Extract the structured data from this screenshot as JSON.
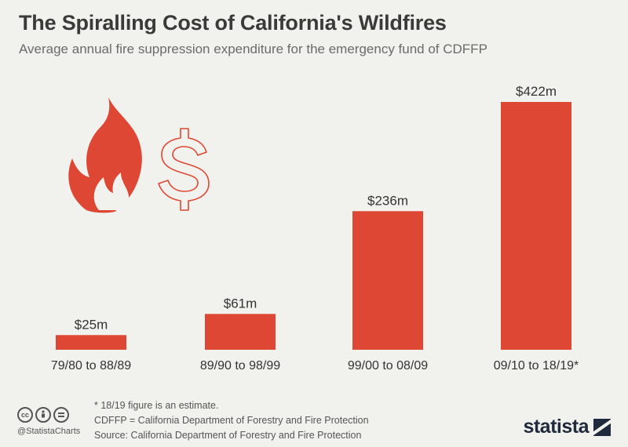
{
  "header": {
    "title": "The Spiralling Cost of California's Wildfires",
    "subtitle": "Average annual fire suppression expenditure for the emergency fund of CDFFP"
  },
  "chart_data": {
    "type": "bar",
    "categories": [
      "79/80 to 88/89",
      "89/90 to 98/99",
      "99/00 to 08/09",
      "09/10 to 18/19*"
    ],
    "values": [
      25,
      61,
      236,
      422
    ],
    "value_labels": [
      "$25m",
      "$61m",
      "$236m",
      "$422m"
    ],
    "unit": "million USD",
    "ylim": [
      0,
      422
    ],
    "grid": false,
    "legend": "none",
    "colors": {
      "bar": "#de4733",
      "text": "#333333"
    }
  },
  "illustration": {
    "icons": [
      "fire-icon",
      "dollar-icon"
    ],
    "color": "#de4733"
  },
  "footer": {
    "note": "* 18/19 figure is an estimate.",
    "abbreviation": "CDFFP = California Department of Forestry and Fire Protection",
    "source": "Source: California Department of Forestry and Fire Protection",
    "handle": "@StatistaCharts",
    "brand": "statista",
    "license_icons": [
      "cc-icon",
      "attribution-icon",
      "no-derivatives-icon"
    ]
  }
}
